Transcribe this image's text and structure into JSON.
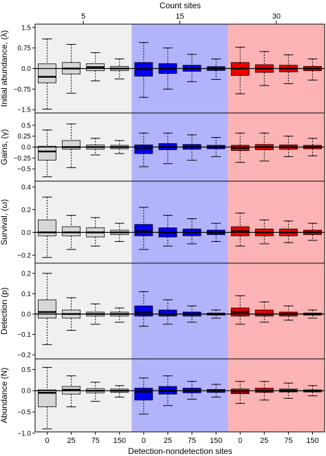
{
  "figure": {
    "top_axis_title": "Count sites",
    "x_axis_title": "Detection-nondetection sites",
    "group_labels": [
      "5",
      "15",
      "30"
    ],
    "x_tick_labels": [
      "0",
      "25",
      "75",
      "150",
      "0",
      "25",
      "75",
      "150",
      "0",
      "25",
      "75",
      "150"
    ],
    "group_colors": {
      "background": [
        "#f0f0f0",
        "#b3b3fc",
        "#fbb3b3"
      ],
      "box": [
        "#d6d6d6",
        "#0000ee",
        "#ee0000"
      ]
    }
  },
  "chart_data": [
    {
      "type": "box",
      "ylabel": "Initial abundance, (λ)",
      "ylim": [
        -1.62,
        1.62
      ],
      "yticks": [
        -1.5,
        -0.75,
        0,
        0.75,
        1.5
      ],
      "ytick_labels": [
        "−1.5",
        "−0.75",
        "0.0",
        "0.75",
        "1.5"
      ],
      "categories": [
        "0",
        "25",
        "75",
        "150",
        "0",
        "25",
        "75",
        "150",
        "0",
        "25",
        "75",
        "150"
      ],
      "boxes": [
        {
          "group": "5",
          "x": "0",
          "whisker_low": -1.48,
          "q1": -0.52,
          "median": -0.3,
          "q3": 0.17,
          "whisker_high": 1.08
        },
        {
          "group": "5",
          "x": "25",
          "whisker_low": -0.9,
          "q1": -0.2,
          "median": 0.0,
          "q3": 0.22,
          "whisker_high": 0.88
        },
        {
          "group": "5",
          "x": "75",
          "whisker_low": -0.45,
          "q1": -0.08,
          "median": 0.05,
          "q3": 0.18,
          "whisker_high": 0.58
        },
        {
          "group": "5",
          "x": "150",
          "whisker_low": -0.38,
          "q1": -0.08,
          "median": 0.0,
          "q3": 0.08,
          "whisker_high": 0.35
        },
        {
          "group": "15",
          "x": "0",
          "whisker_low": -1.05,
          "q1": -0.28,
          "median": -0.02,
          "q3": 0.22,
          "whisker_high": 0.95
        },
        {
          "group": "15",
          "x": "25",
          "whisker_low": -0.75,
          "q1": -0.18,
          "median": 0.0,
          "q3": 0.18,
          "whisker_high": 0.75
        },
        {
          "group": "15",
          "x": "75",
          "whisker_low": -0.48,
          "q1": -0.1,
          "median": 0.0,
          "q3": 0.12,
          "whisker_high": 0.52
        },
        {
          "group": "15",
          "x": "150",
          "whisker_low": -0.4,
          "q1": -0.07,
          "median": 0.0,
          "q3": 0.07,
          "whisker_high": 0.35
        },
        {
          "group": "30",
          "x": "0",
          "whisker_low": -0.92,
          "q1": -0.25,
          "median": 0.0,
          "q3": 0.22,
          "whisker_high": 0.78
        },
        {
          "group": "30",
          "x": "25",
          "whisker_low": -0.62,
          "q1": -0.14,
          "median": 0.0,
          "q3": 0.14,
          "whisker_high": 0.62
        },
        {
          "group": "30",
          "x": "75",
          "whisker_low": -0.55,
          "q1": -0.12,
          "median": 0.0,
          "q3": 0.12,
          "whisker_high": 0.5
        },
        {
          "group": "30",
          "x": "150",
          "whisker_low": -0.42,
          "q1": -0.08,
          "median": 0.0,
          "q3": 0.08,
          "whisker_high": 0.35
        }
      ]
    },
    {
      "type": "box",
      "ylabel": "Gains, (γ)",
      "ylim": [
        -0.78,
        0.78
      ],
      "yticks": [
        -0.5,
        -0.25,
        0,
        0.25,
        0.5
      ],
      "ytick_labels": [
        "−0.5",
        "−0.25",
        "0.0",
        "0.25",
        "0.5"
      ],
      "categories": [
        "0",
        "25",
        "75",
        "150",
        "0",
        "25",
        "75",
        "150",
        "0",
        "25",
        "75",
        "150"
      ],
      "boxes": [
        {
          "group": "5",
          "x": "0",
          "whisker_low": -0.68,
          "q1": -0.3,
          "median": -0.1,
          "q3": 0.02,
          "whisker_high": 0.39
        },
        {
          "group": "5",
          "x": "25",
          "whisker_low": -0.47,
          "q1": -0.05,
          "median": 0.0,
          "q3": 0.15,
          "whisker_high": 0.53
        },
        {
          "group": "5",
          "x": "75",
          "whisker_low": -0.18,
          "q1": -0.05,
          "median": 0.0,
          "q3": 0.05,
          "whisker_high": 0.2
        },
        {
          "group": "5",
          "x": "150",
          "whisker_low": -0.15,
          "q1": -0.04,
          "median": 0.0,
          "q3": 0.04,
          "whisker_high": 0.15
        },
        {
          "group": "15",
          "x": "0",
          "whisker_low": -0.45,
          "q1": -0.15,
          "median": -0.02,
          "q3": 0.05,
          "whisker_high": 0.32
        },
        {
          "group": "15",
          "x": "25",
          "whisker_low": -0.38,
          "q1": -0.06,
          "median": 0.0,
          "q3": 0.08,
          "whisker_high": 0.32
        },
        {
          "group": "15",
          "x": "75",
          "whisker_low": -0.3,
          "q1": -0.05,
          "median": 0.0,
          "q3": 0.06,
          "whisker_high": 0.28
        },
        {
          "group": "15",
          "x": "150",
          "whisker_low": -0.22,
          "q1": -0.04,
          "median": 0.0,
          "q3": 0.04,
          "whisker_high": 0.22
        },
        {
          "group": "30",
          "x": "0",
          "whisker_low": -0.35,
          "q1": -0.08,
          "median": -0.02,
          "q3": 0.04,
          "whisker_high": 0.32
        },
        {
          "group": "30",
          "x": "25",
          "whisker_low": -0.32,
          "q1": -0.06,
          "median": 0.0,
          "q3": 0.06,
          "whisker_high": 0.32
        },
        {
          "group": "30",
          "x": "75",
          "whisker_low": -0.22,
          "q1": -0.05,
          "median": 0.0,
          "q3": 0.05,
          "whisker_high": 0.25
        },
        {
          "group": "30",
          "x": "150",
          "whisker_low": -0.2,
          "q1": -0.04,
          "median": 0.0,
          "q3": 0.04,
          "whisker_high": 0.2
        }
      ]
    },
    {
      "type": "box",
      "ylabel": "Survival, (ω)",
      "ylim": [
        -0.27,
        0.45
      ],
      "yticks": [
        -0.2,
        0,
        0.2,
        0.4
      ],
      "ytick_labels": [
        "−0.2",
        "0.0",
        "0.2",
        "0.4"
      ],
      "categories": [
        "0",
        "25",
        "75",
        "150",
        "0",
        "25",
        "75",
        "150",
        "0",
        "25",
        "75",
        "150"
      ],
      "boxes": [
        {
          "group": "5",
          "x": "0",
          "whisker_low": -0.22,
          "q1": -0.03,
          "median": 0.0,
          "q3": 0.11,
          "whisker_high": 0.31
        },
        {
          "group": "5",
          "x": "25",
          "whisker_low": -0.15,
          "q1": -0.03,
          "median": 0.0,
          "q3": 0.05,
          "whisker_high": 0.15
        },
        {
          "group": "5",
          "x": "75",
          "whisker_low": -0.12,
          "q1": -0.04,
          "median": 0.0,
          "q3": 0.04,
          "whisker_high": 0.13
        },
        {
          "group": "5",
          "x": "150",
          "whisker_low": -0.08,
          "q1": -0.02,
          "median": 0.0,
          "q3": 0.02,
          "whisker_high": 0.08
        },
        {
          "group": "15",
          "x": "0",
          "whisker_low": -0.15,
          "q1": -0.03,
          "median": 0.01,
          "q3": 0.07,
          "whisker_high": 0.22
        },
        {
          "group": "15",
          "x": "25",
          "whisker_low": -0.12,
          "q1": -0.04,
          "median": 0.0,
          "q3": 0.04,
          "whisker_high": 0.15
        },
        {
          "group": "15",
          "x": "75",
          "whisker_low": -0.1,
          "q1": -0.03,
          "median": 0.0,
          "q3": 0.03,
          "whisker_high": 0.12
        },
        {
          "group": "15",
          "x": "150",
          "whisker_low": -0.08,
          "q1": -0.02,
          "median": 0.0,
          "q3": 0.02,
          "whisker_high": 0.08
        },
        {
          "group": "30",
          "x": "0",
          "whisker_low": -0.12,
          "q1": -0.03,
          "median": 0.01,
          "q3": 0.05,
          "whisker_high": 0.17
        },
        {
          "group": "30",
          "x": "25",
          "whisker_low": -0.1,
          "q1": -0.03,
          "median": 0.0,
          "q3": 0.03,
          "whisker_high": 0.11
        },
        {
          "group": "30",
          "x": "75",
          "whisker_low": -0.09,
          "q1": -0.03,
          "median": 0.0,
          "q3": 0.03,
          "whisker_high": 0.1
        },
        {
          "group": "30",
          "x": "150",
          "whisker_low": -0.07,
          "q1": -0.02,
          "median": 0.0,
          "q3": 0.02,
          "whisker_high": 0.08
        }
      ]
    },
    {
      "type": "box",
      "ylabel": "Detection (p)",
      "ylim": [
        -0.22,
        0.25
      ],
      "yticks": [
        -0.2,
        -0.1,
        0,
        0.1,
        0.2
      ],
      "ytick_labels": [
        "−0.2",
        "−0.1",
        "0.0",
        "0.1",
        "0.2"
      ],
      "categories": [
        "0",
        "25",
        "75",
        "150",
        "0",
        "25",
        "75",
        "150",
        "0",
        "25",
        "75",
        "150"
      ],
      "boxes": [
        {
          "group": "5",
          "x": "0",
          "whisker_low": -0.15,
          "q1": -0.02,
          "median": 0.01,
          "q3": 0.07,
          "whisker_high": 0.2
        },
        {
          "group": "5",
          "x": "25",
          "whisker_low": -0.08,
          "q1": -0.02,
          "median": 0.0,
          "q3": 0.02,
          "whisker_high": 0.08
        },
        {
          "group": "5",
          "x": "75",
          "whisker_low": -0.05,
          "q1": -0.01,
          "median": 0.0,
          "q3": 0.01,
          "whisker_high": 0.05
        },
        {
          "group": "5",
          "x": "150",
          "whisker_low": -0.04,
          "q1": -0.01,
          "median": 0.0,
          "q3": 0.01,
          "whisker_high": 0.03
        },
        {
          "group": "15",
          "x": "0",
          "whisker_low": -0.06,
          "q1": -0.01,
          "median": 0.01,
          "q3": 0.04,
          "whisker_high": 0.11
        },
        {
          "group": "15",
          "x": "25",
          "whisker_low": -0.05,
          "q1": -0.01,
          "median": 0.0,
          "q3": 0.02,
          "whisker_high": 0.07
        },
        {
          "group": "15",
          "x": "75",
          "whisker_low": -0.04,
          "q1": -0.01,
          "median": 0.0,
          "q3": 0.01,
          "whisker_high": 0.04
        },
        {
          "group": "15",
          "x": "150",
          "whisker_low": -0.02,
          "q1": -0.005,
          "median": 0.0,
          "q3": 0.005,
          "whisker_high": 0.02
        },
        {
          "group": "30",
          "x": "0",
          "whisker_low": -0.05,
          "q1": -0.01,
          "median": 0.01,
          "q3": 0.03,
          "whisker_high": 0.09
        },
        {
          "group": "30",
          "x": "25",
          "whisker_low": -0.04,
          "q1": -0.01,
          "median": 0.0,
          "q3": 0.02,
          "whisker_high": 0.06
        },
        {
          "group": "30",
          "x": "75",
          "whisker_low": -0.03,
          "q1": -0.01,
          "median": 0.0,
          "q3": 0.01,
          "whisker_high": 0.04
        },
        {
          "group": "30",
          "x": "150",
          "whisker_low": -0.02,
          "q1": -0.005,
          "median": 0.0,
          "q3": 0.005,
          "whisker_high": 0.02
        }
      ]
    },
    {
      "type": "box",
      "ylabel": "Abundance (N)",
      "ylim": [
        -0.97,
        0.75
      ],
      "yticks": [
        -1.0,
        -0.5,
        0,
        0.5
      ],
      "ytick_labels": [
        "−1.0",
        "−0.5",
        "0.0",
        "0.5"
      ],
      "categories": [
        "0",
        "25",
        "75",
        "150",
        "0",
        "25",
        "75",
        "150",
        "0",
        "25",
        "75",
        "150"
      ],
      "boxes": [
        {
          "group": "5",
          "x": "0",
          "whisker_low": -0.9,
          "q1": -0.38,
          "median": -0.05,
          "q3": 0.02,
          "whisker_high": 0.55
        },
        {
          "group": "5",
          "x": "25",
          "whisker_low": -0.38,
          "q1": -0.08,
          "median": 0.02,
          "q3": 0.1,
          "whisker_high": 0.35
        },
        {
          "group": "5",
          "x": "75",
          "whisker_low": -0.25,
          "q1": -0.05,
          "median": 0.0,
          "q3": 0.05,
          "whisker_high": 0.2
        },
        {
          "group": "5",
          "x": "150",
          "whisker_low": -0.15,
          "q1": -0.04,
          "median": 0.0,
          "q3": 0.04,
          "whisker_high": 0.12
        },
        {
          "group": "15",
          "x": "0",
          "whisker_low": -0.55,
          "q1": -0.22,
          "median": -0.02,
          "q3": 0.06,
          "whisker_high": 0.3
        },
        {
          "group": "15",
          "x": "25",
          "whisker_low": -0.35,
          "q1": -0.08,
          "median": 0.0,
          "q3": 0.1,
          "whisker_high": 0.35
        },
        {
          "group": "15",
          "x": "75",
          "whisker_low": -0.2,
          "q1": -0.05,
          "median": 0.0,
          "q3": 0.06,
          "whisker_high": 0.22
        },
        {
          "group": "15",
          "x": "150",
          "whisker_low": -0.15,
          "q1": -0.04,
          "median": 0.0,
          "q3": 0.03,
          "whisker_high": 0.15
        },
        {
          "group": "30",
          "x": "0",
          "whisker_low": -0.3,
          "q1": -0.07,
          "median": -0.02,
          "q3": 0.04,
          "whisker_high": 0.22
        },
        {
          "group": "30",
          "x": "25",
          "whisker_low": -0.22,
          "q1": -0.04,
          "median": 0.0,
          "q3": 0.06,
          "whisker_high": 0.22
        },
        {
          "group": "30",
          "x": "75",
          "whisker_low": -0.18,
          "q1": -0.03,
          "median": 0.0,
          "q3": 0.04,
          "whisker_high": 0.18
        },
        {
          "group": "30",
          "x": "150",
          "whisker_low": -0.12,
          "q1": -0.03,
          "median": 0.0,
          "q3": 0.02,
          "whisker_high": 0.12
        }
      ]
    }
  ]
}
